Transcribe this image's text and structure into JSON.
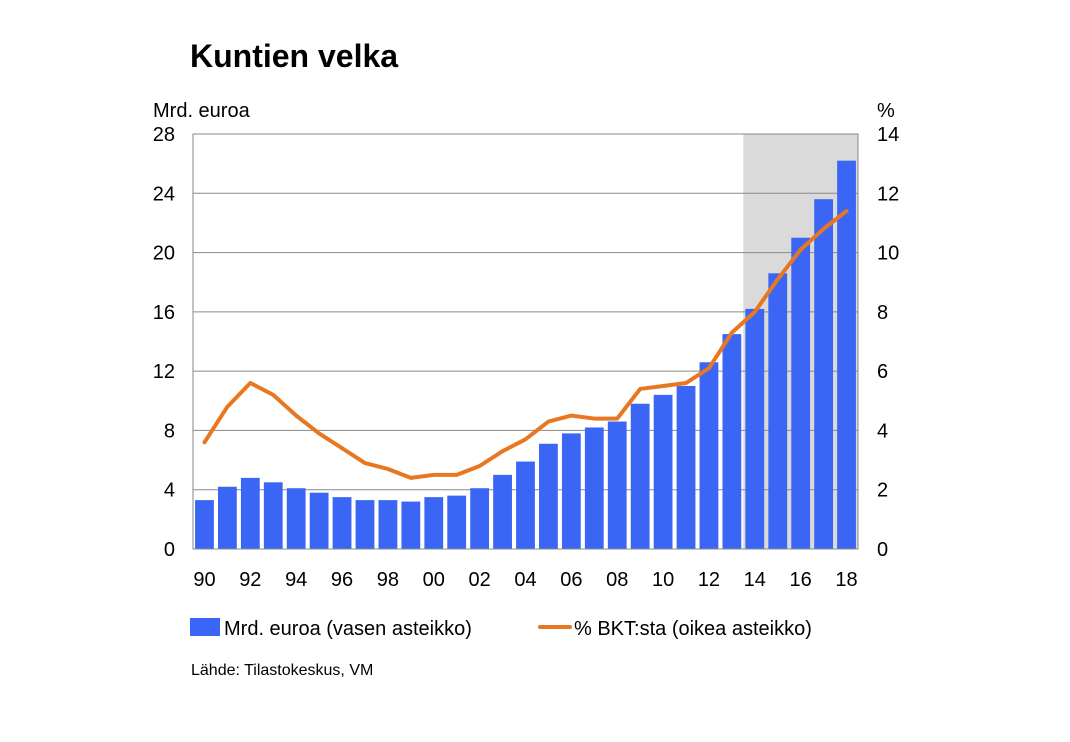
{
  "chart_data": {
    "type": "bar",
    "title": "Kuntien velka",
    "left_axis_unit": "Mrd. euroa",
    "right_axis_unit": "%",
    "categories": [
      "90",
      "91",
      "92",
      "93",
      "94",
      "95",
      "96",
      "97",
      "98",
      "99",
      "00",
      "01",
      "02",
      "03",
      "04",
      "05",
      "06",
      "07",
      "08",
      "09",
      "10",
      "11",
      "12",
      "13",
      "14",
      "15",
      "16",
      "17",
      "18"
    ],
    "x_tick_labels": [
      "90",
      "92",
      "94",
      "96",
      "98",
      "00",
      "02",
      "04",
      "06",
      "08",
      "10",
      "12",
      "14",
      "16",
      "18"
    ],
    "left_ticks": [
      "0",
      "4",
      "8",
      "12",
      "16",
      "20",
      "24",
      "28"
    ],
    "right_ticks": [
      "0",
      "2",
      "4",
      "6",
      "8",
      "10",
      "12",
      "14"
    ],
    "ylim_left": [
      0,
      28
    ],
    "ylim_right": [
      0,
      14
    ],
    "forecast_from": "14",
    "series": [
      {
        "name": "Mrd. euroa (vasen asteikko)",
        "type": "bar",
        "axis": "left",
        "color": "#3b66f5",
        "values": [
          3.3,
          4.2,
          4.8,
          4.5,
          4.1,
          3.8,
          3.5,
          3.3,
          3.3,
          3.2,
          3.5,
          3.6,
          4.1,
          5.0,
          5.9,
          7.1,
          7.8,
          8.2,
          8.6,
          9.8,
          10.4,
          11.0,
          12.6,
          14.5,
          16.2,
          18.6,
          21.0,
          23.6,
          26.2
        ]
      },
      {
        "name": "% BKT:sta (oikea asteikko)",
        "type": "line",
        "axis": "right",
        "color": "#e87722",
        "values": [
          3.6,
          4.8,
          5.6,
          5.2,
          4.5,
          3.9,
          3.4,
          2.9,
          2.7,
          2.4,
          2.5,
          2.5,
          2.8,
          3.3,
          3.7,
          4.3,
          4.5,
          4.4,
          4.4,
          5.4,
          5.5,
          5.6,
          6.1,
          7.3,
          8.0,
          9.1,
          10.1,
          10.8,
          11.4
        ]
      }
    ],
    "source": "Lähde: Tilastokeskus, VM",
    "grid": true,
    "legend_position": "bottom"
  }
}
